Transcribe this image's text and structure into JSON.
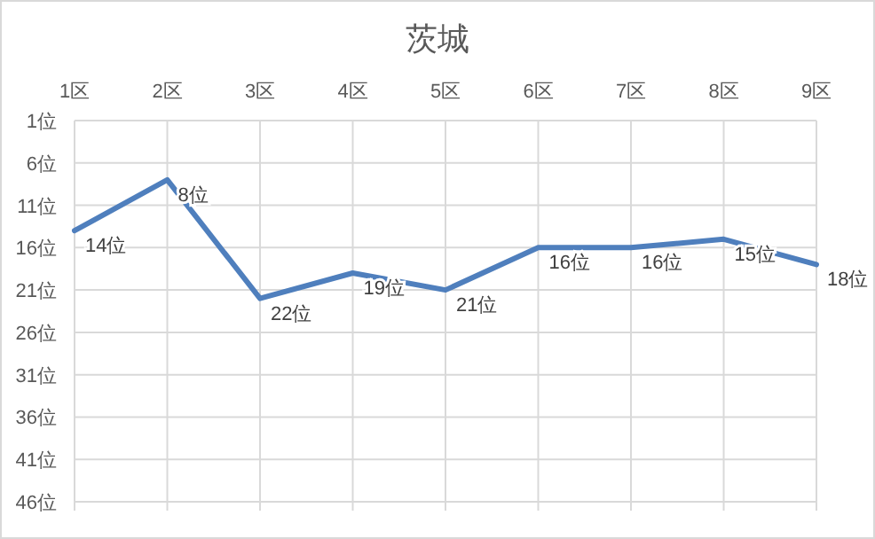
{
  "chart_data": {
    "type": "line",
    "title": "茨城",
    "categories": [
      "1区",
      "2区",
      "3区",
      "4区",
      "5区",
      "6区",
      "7区",
      "8区",
      "9区"
    ],
    "series": [
      {
        "color": "#4f7fbd",
        "values": [
          14,
          8,
          22,
          19,
          21,
          16,
          16,
          15,
          18
        ],
        "value_labels": [
          "14位",
          "8位",
          "22位",
          "19位",
          "21位",
          "16位",
          "16位",
          "15位",
          "18位"
        ]
      }
    ],
    "ylim": [
      46,
      1
    ],
    "yticks": [
      {
        "value": 1,
        "label": "1位"
      },
      {
        "value": 6,
        "label": "6位"
      },
      {
        "value": 11,
        "label": "11位"
      },
      {
        "value": 16,
        "label": "16位"
      },
      {
        "value": 21,
        "label": "21位"
      },
      {
        "value": 26,
        "label": "26位"
      },
      {
        "value": 31,
        "label": "31位"
      },
      {
        "value": 36,
        "label": "36位"
      },
      {
        "value": 41,
        "label": "41位"
      },
      {
        "value": 46,
        "label": "46位"
      }
    ],
    "grid": true
  }
}
